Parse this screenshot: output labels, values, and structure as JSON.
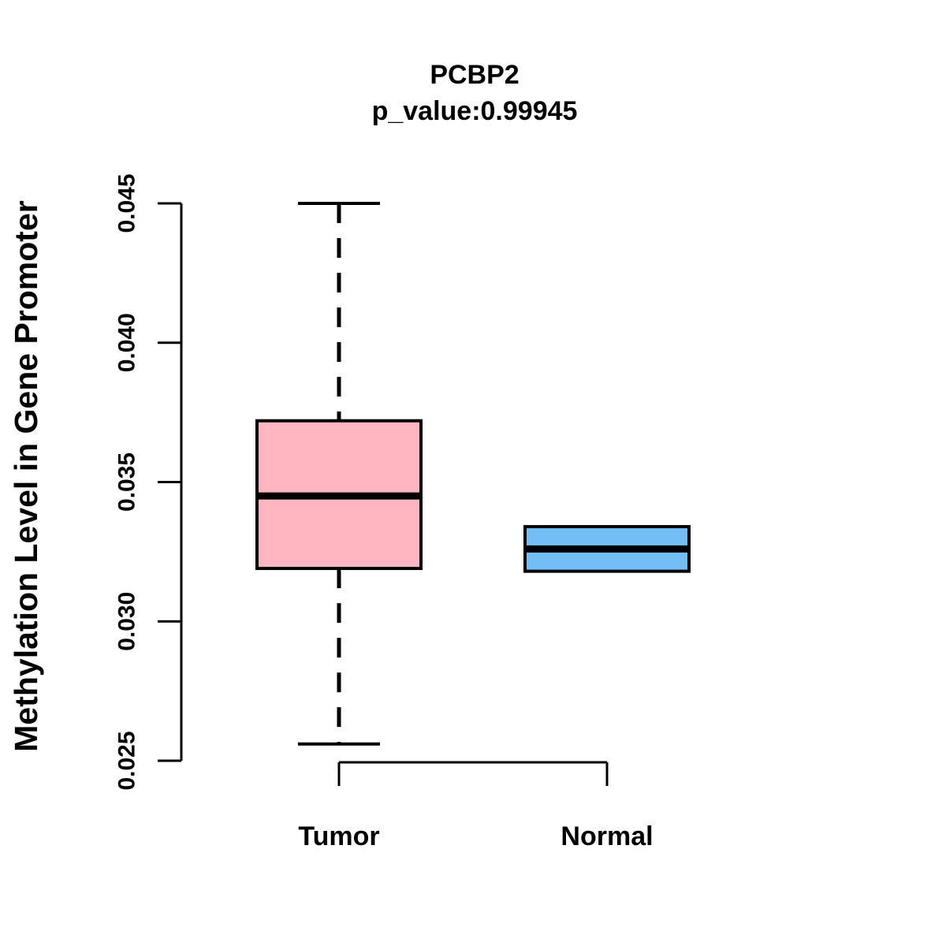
{
  "chart_data": {
    "type": "boxplot",
    "title": "PCBP2",
    "subtitle": "p_value:0.99945",
    "ylabel": "Methylation Level in Gene Promoter",
    "xlabel": "",
    "ylim": [
      0.025,
      0.045
    ],
    "yticks": [
      0.025,
      0.03,
      0.035,
      0.04,
      0.045
    ],
    "ytick_labels": [
      "0.025",
      "0.030",
      "0.035",
      "0.040",
      "0.045"
    ],
    "categories": [
      "Tumor",
      "Normal"
    ],
    "grid": false,
    "legend": "none",
    "series": [
      {
        "name": "Tumor",
        "color": "#FFB6C1",
        "whisker_low": 0.0256,
        "q1": 0.0319,
        "median": 0.0345,
        "q3": 0.0372,
        "whisker_high": 0.045
      },
      {
        "name": "Normal",
        "color": "#73BEF5",
        "whisker_low": 0.0318,
        "q1": 0.0318,
        "median": 0.0326,
        "q3": 0.0334,
        "whisker_high": 0.0334
      }
    ],
    "colors": {
      "box_border": "#000000",
      "median_line": "#000000",
      "axis": "#000000",
      "text": "#000000",
      "background": "#FFFFFF"
    }
  }
}
